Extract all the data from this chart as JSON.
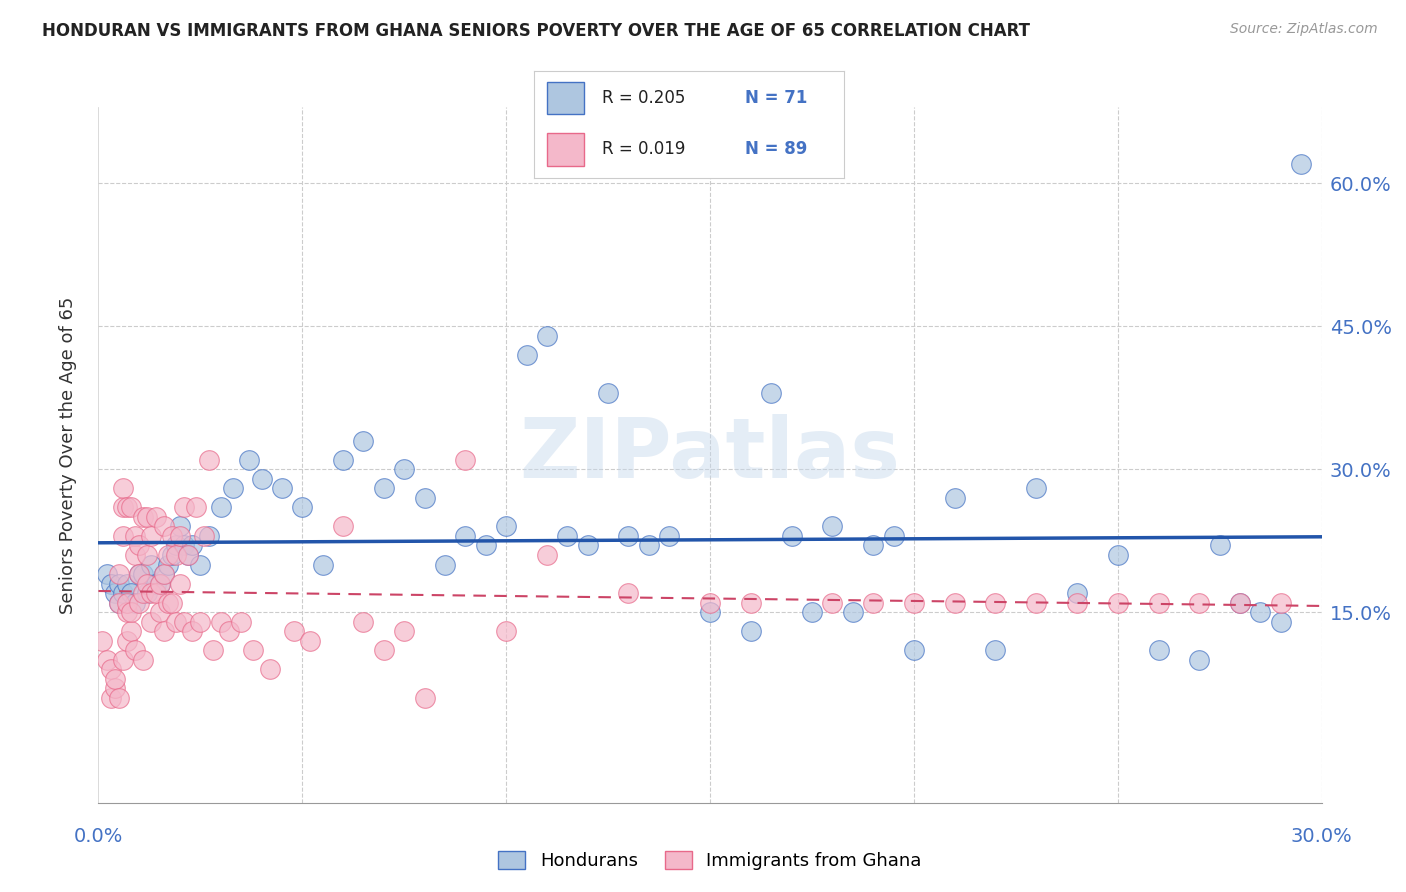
{
  "title": "HONDURAN VS IMMIGRANTS FROM GHANA SENIORS POVERTY OVER THE AGE OF 65 CORRELATION CHART",
  "source": "Source: ZipAtlas.com",
  "ylabel": "Seniors Poverty Over the Age of 65",
  "ytick_labels": [
    "60.0%",
    "45.0%",
    "30.0%",
    "15.0%"
  ],
  "ytick_values": [
    0.6,
    0.45,
    0.3,
    0.15
  ],
  "xlim": [
    0.0,
    0.3
  ],
  "ylim": [
    -0.05,
    0.68
  ],
  "hondurans_color": "#aec6e0",
  "ghana_color": "#f4b8ca",
  "hondurans_edge_color": "#4472c4",
  "ghana_edge_color": "#e8698a",
  "hondurans_line_color": "#2255aa",
  "ghana_line_color": "#cc4466",
  "background_color": "#ffffff",
  "grid_color": "#cccccc",
  "R_hondurans": 0.205,
  "N_hondurans": 71,
  "R_ghana": 0.019,
  "N_ghana": 89,
  "legend_label_hondurans": "Hondurans",
  "legend_label_ghana": "Immigrants from Ghana",
  "text_color_blue": "#4472c4",
  "tick_label_color": "#4472c4",
  "hondurans_x": [
    0.002,
    0.003,
    0.004,
    0.005,
    0.005,
    0.006,
    0.007,
    0.008,
    0.009,
    0.01,
    0.011,
    0.012,
    0.013,
    0.014,
    0.015,
    0.016,
    0.017,
    0.018,
    0.019,
    0.02,
    0.021,
    0.022,
    0.023,
    0.025,
    0.027,
    0.03,
    0.033,
    0.037,
    0.04,
    0.045,
    0.05,
    0.055,
    0.06,
    0.065,
    0.07,
    0.075,
    0.08,
    0.085,
    0.09,
    0.095,
    0.1,
    0.105,
    0.11,
    0.115,
    0.12,
    0.125,
    0.13,
    0.135,
    0.14,
    0.15,
    0.16,
    0.165,
    0.17,
    0.175,
    0.18,
    0.185,
    0.19,
    0.195,
    0.2,
    0.21,
    0.22,
    0.23,
    0.24,
    0.25,
    0.26,
    0.27,
    0.275,
    0.28,
    0.285,
    0.29,
    0.295
  ],
  "hondurans_y": [
    0.19,
    0.18,
    0.17,
    0.16,
    0.18,
    0.17,
    0.18,
    0.17,
    0.16,
    0.19,
    0.19,
    0.17,
    0.2,
    0.18,
    0.18,
    0.19,
    0.2,
    0.21,
    0.22,
    0.24,
    0.22,
    0.21,
    0.22,
    0.2,
    0.23,
    0.26,
    0.28,
    0.31,
    0.29,
    0.28,
    0.26,
    0.2,
    0.31,
    0.33,
    0.28,
    0.3,
    0.27,
    0.2,
    0.23,
    0.22,
    0.24,
    0.42,
    0.44,
    0.23,
    0.22,
    0.38,
    0.23,
    0.22,
    0.23,
    0.15,
    0.13,
    0.38,
    0.23,
    0.15,
    0.24,
    0.15,
    0.22,
    0.23,
    0.11,
    0.27,
    0.11,
    0.28,
    0.17,
    0.21,
    0.11,
    0.1,
    0.22,
    0.16,
    0.15,
    0.14,
    0.62
  ],
  "ghana_x": [
    0.001,
    0.002,
    0.003,
    0.003,
    0.004,
    0.004,
    0.005,
    0.005,
    0.005,
    0.006,
    0.006,
    0.006,
    0.006,
    0.007,
    0.007,
    0.007,
    0.007,
    0.008,
    0.008,
    0.008,
    0.009,
    0.009,
    0.009,
    0.01,
    0.01,
    0.01,
    0.011,
    0.011,
    0.011,
    0.012,
    0.012,
    0.012,
    0.013,
    0.013,
    0.013,
    0.014,
    0.014,
    0.015,
    0.015,
    0.016,
    0.016,
    0.016,
    0.017,
    0.017,
    0.018,
    0.018,
    0.019,
    0.019,
    0.02,
    0.02,
    0.021,
    0.021,
    0.022,
    0.023,
    0.024,
    0.025,
    0.026,
    0.027,
    0.028,
    0.03,
    0.032,
    0.035,
    0.038,
    0.042,
    0.048,
    0.052,
    0.06,
    0.065,
    0.07,
    0.075,
    0.08,
    0.09,
    0.1,
    0.11,
    0.13,
    0.15,
    0.16,
    0.18,
    0.19,
    0.2,
    0.21,
    0.22,
    0.23,
    0.24,
    0.25,
    0.26,
    0.27,
    0.28,
    0.29
  ],
  "ghana_y": [
    0.12,
    0.1,
    0.09,
    0.06,
    0.07,
    0.08,
    0.06,
    0.16,
    0.19,
    0.23,
    0.26,
    0.28,
    0.1,
    0.12,
    0.15,
    0.16,
    0.26,
    0.13,
    0.15,
    0.26,
    0.11,
    0.21,
    0.23,
    0.16,
    0.19,
    0.22,
    0.17,
    0.25,
    0.1,
    0.18,
    0.21,
    0.25,
    0.14,
    0.23,
    0.17,
    0.17,
    0.25,
    0.15,
    0.18,
    0.19,
    0.24,
    0.13,
    0.21,
    0.16,
    0.16,
    0.23,
    0.14,
    0.21,
    0.18,
    0.23,
    0.14,
    0.26,
    0.21,
    0.13,
    0.26,
    0.14,
    0.23,
    0.31,
    0.11,
    0.14,
    0.13,
    0.14,
    0.11,
    0.09,
    0.13,
    0.12,
    0.24,
    0.14,
    0.11,
    0.13,
    0.06,
    0.31,
    0.13,
    0.21,
    0.17,
    0.16,
    0.16,
    0.16,
    0.16,
    0.16,
    0.16,
    0.16,
    0.16,
    0.16,
    0.16,
    0.16,
    0.16,
    0.16,
    0.16
  ]
}
